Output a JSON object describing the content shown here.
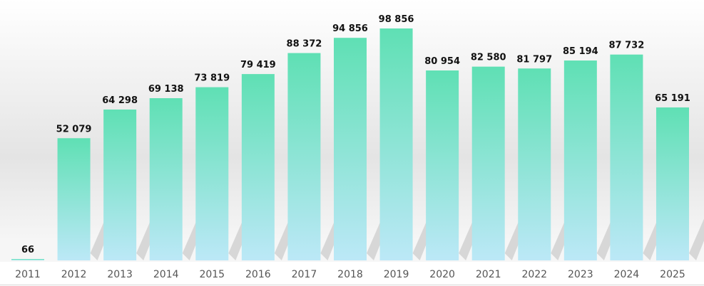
{
  "chart_data": {
    "type": "bar",
    "categories": [
      "2011",
      "2012",
      "2013",
      "2014",
      "2015",
      "2016",
      "2017",
      "2018",
      "2019",
      "2020",
      "2021",
      "2022",
      "2023",
      "2024",
      "2025"
    ],
    "values": [
      66,
      52079,
      64298,
      69138,
      73819,
      79419,
      88372,
      94856,
      98856,
      80954,
      82580,
      81797,
      85194,
      87732,
      65191
    ],
    "data_labels": [
      "66",
      "52 079",
      "64 298",
      "69 138",
      "73 819",
      "79 419",
      "88 372",
      "94 856",
      "98 856",
      "80 954",
      "82 580",
      "81 797",
      "85 194",
      "87 732",
      "65 191"
    ],
    "title": "",
    "xlabel": "",
    "ylabel": "",
    "ylim": [
      0,
      98856
    ],
    "grid": false,
    "legend": "none",
    "colors": {
      "bar_top": "#5fe0b4",
      "bar_bottom": "#bce8f7",
      "label": "#111111",
      "tick": "#555555"
    }
  }
}
